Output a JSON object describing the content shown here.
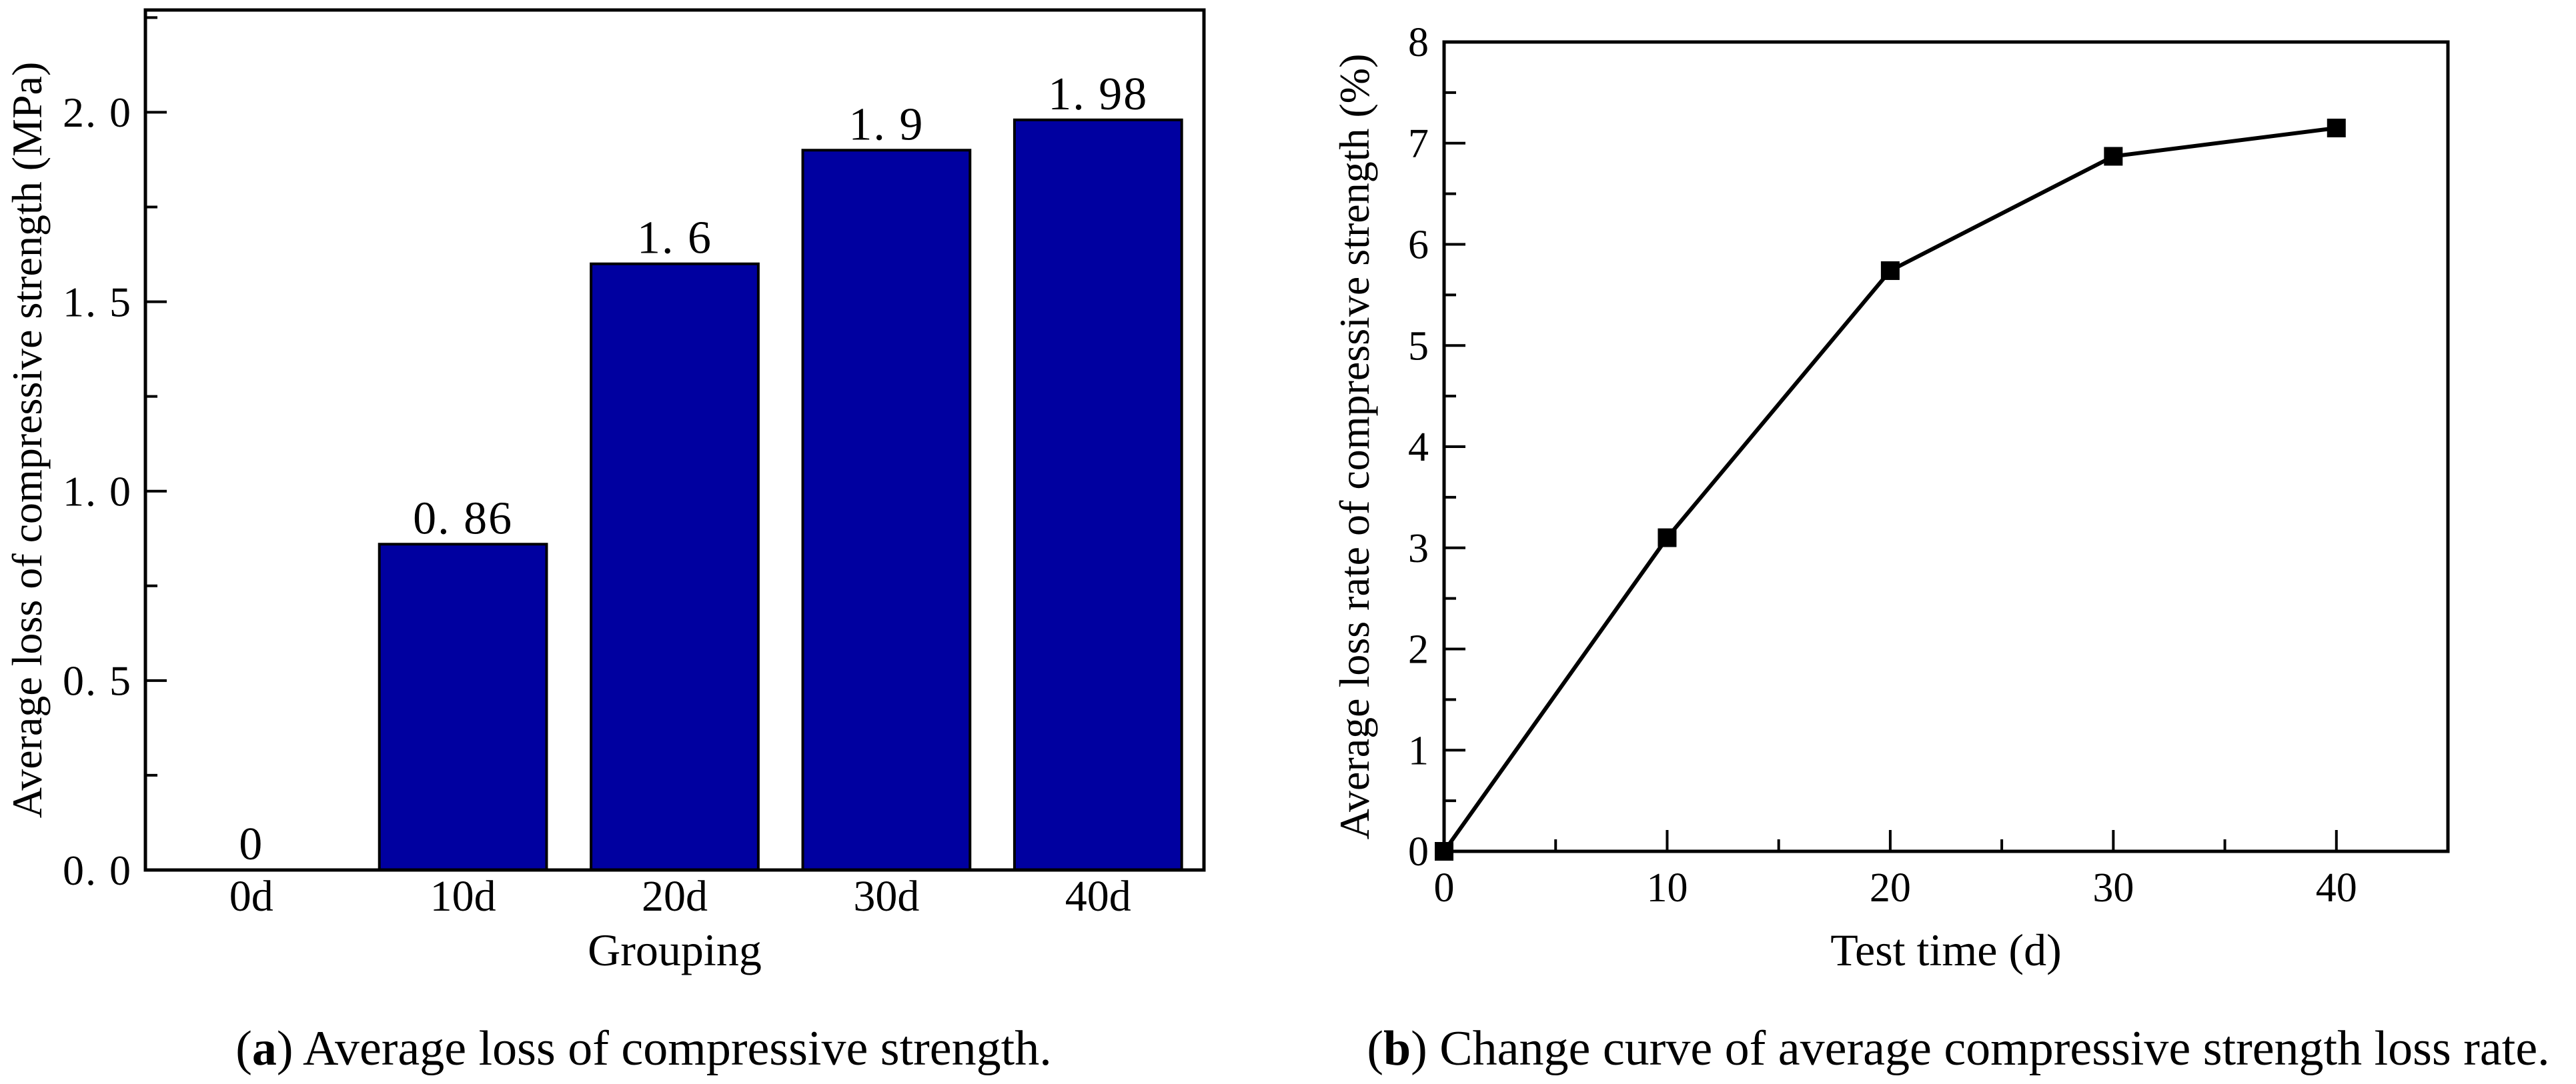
{
  "figure": {
    "background_color": "#FFFFFF",
    "text_color": "#000000",
    "captions": {
      "a": {
        "open": "(",
        "label": "a",
        "close": ")",
        "text": " Average loss of compressive strength."
      },
      "b": {
        "open": "(",
        "label": "b",
        "close": ")",
        "text": " Change curve of average compressive strength loss rate."
      }
    }
  },
  "chart_data": [
    {
      "id": "bar-chart",
      "panel": "a",
      "type": "bar",
      "title": "",
      "categories": [
        "0d",
        "10d",
        "20d",
        "30d",
        "40d"
      ],
      "values": [
        0,
        0.86,
        1.6,
        1.9,
        1.98
      ],
      "bar_value_labels": [
        "0",
        "0. 86",
        "1. 6",
        "1. 9",
        "1. 98"
      ],
      "xlabel": "Grouping",
      "ylabel": "Average loss of compressive strength (MPa)",
      "ylim": [
        0,
        2.27
      ],
      "yticks": [
        0,
        0.5,
        1.0,
        1.5,
        2.0
      ],
      "ytick_labels": [
        "0. 0",
        "0. 5",
        "1. 0",
        "1. 5",
        "2. 0"
      ],
      "yminor_ticks": [
        0.25,
        0.75,
        1.25,
        1.75,
        2.25
      ],
      "grid": false,
      "legend": null,
      "bar_fill_color": "#0000A0",
      "bar_edge_color": "#000000",
      "bar_width_fraction": 0.79
    },
    {
      "id": "line-chart",
      "panel": "b",
      "type": "line",
      "title": "",
      "x": [
        0,
        10,
        20,
        30,
        40
      ],
      "y": [
        0,
        3.1,
        5.74,
        6.87,
        7.15
      ],
      "xlabel": "Test time (d)",
      "ylabel": "Average loss rate of compressive strength (%)",
      "xlim": [
        0,
        45
      ],
      "ylim": [
        0,
        8
      ],
      "xticks": [
        0,
        10,
        20,
        30,
        40
      ],
      "xtick_labels": [
        "0",
        "10",
        "20",
        "30",
        "40"
      ],
      "xminor_ticks": [
        5,
        15,
        25,
        35
      ],
      "yticks": [
        0,
        1,
        2,
        3,
        4,
        5,
        6,
        7,
        8
      ],
      "ytick_labels": [
        "0",
        "1",
        "2",
        "3",
        "4",
        "5",
        "6",
        "7",
        "8"
      ],
      "yminor_step": 0.5,
      "grid": false,
      "legend": null,
      "line_color": "#000000",
      "marker": "square",
      "marker_color": "#000000"
    }
  ]
}
